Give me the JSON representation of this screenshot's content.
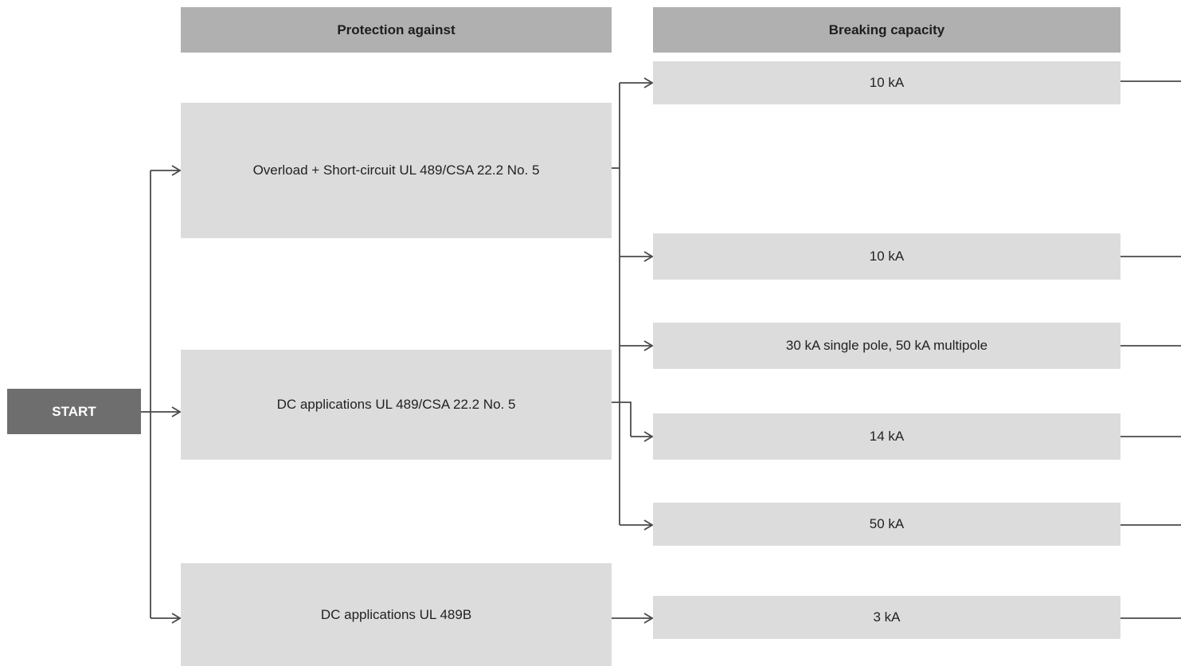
{
  "headers": {
    "protection": "Protection against",
    "breaking": "Breaking capacity"
  },
  "start_label": "START",
  "protection_items": [
    "Overload + Short-circuit UL 489/CSA 22.2 No. 5",
    "DC applications UL 489/CSA 22.2 No. 5",
    "DC applications UL 489B"
  ],
  "capacity_items": [
    "10 kA",
    "10 kA",
    "30 kA single pole, 50 kA multipole",
    "14 kA",
    "50 kA",
    "3 kA"
  ],
  "colors": {
    "header": "#b0b0b0",
    "box": "#dcdcdc",
    "start": "#6e6e6e",
    "connector": "#4a4a4a"
  }
}
